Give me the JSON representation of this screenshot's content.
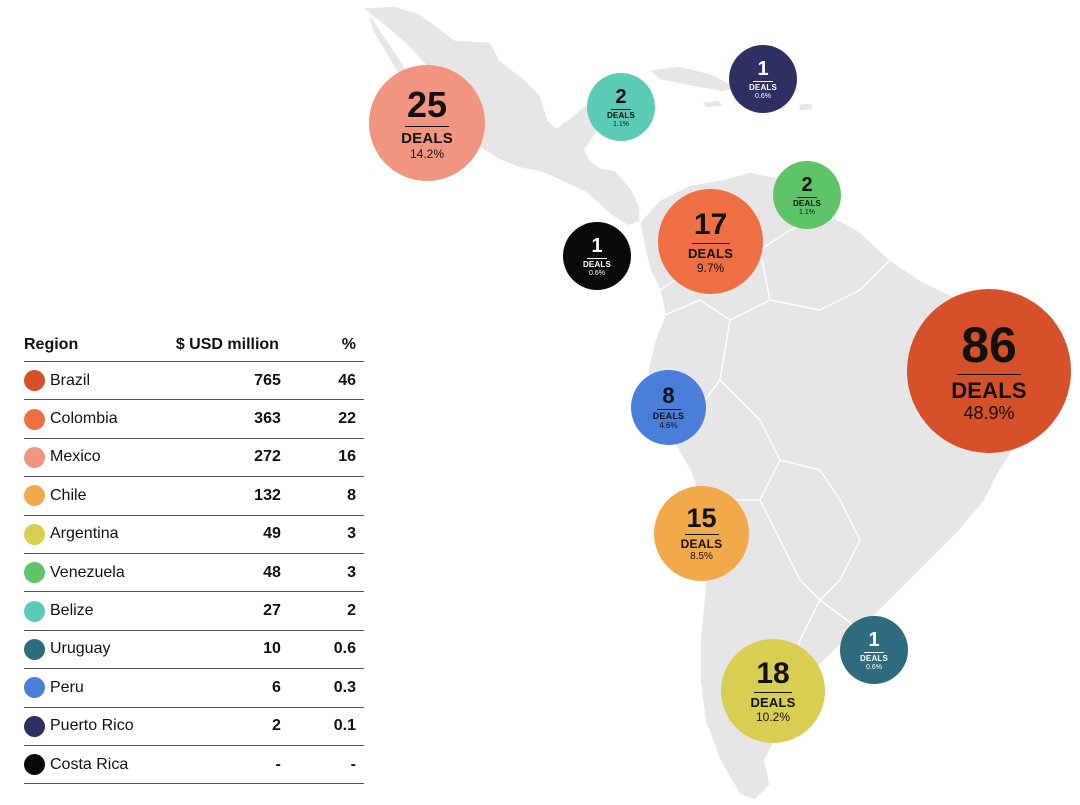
{
  "colors": {
    "map_land": "#e6e6e6",
    "map_border": "#ffffff"
  },
  "table": {
    "headers": {
      "region": "Region",
      "usd": "$ USD million",
      "pct": "%"
    },
    "rows": [
      {
        "region": "Brazil",
        "usd": "765",
        "pct": "46",
        "color": "#d6502a"
      },
      {
        "region": "Colombia",
        "usd": "363",
        "pct": "22",
        "color": "#ef6f45"
      },
      {
        "region": "Mexico",
        "usd": "272",
        "pct": "16",
        "color": "#f29580"
      },
      {
        "region": "Chile",
        "usd": "132",
        "pct": "8",
        "color": "#f2a94a"
      },
      {
        "region": "Argentina",
        "usd": "49",
        "pct": "3",
        "color": "#d8cf52"
      },
      {
        "region": "Venezuela",
        "usd": "48",
        "pct": "3",
        "color": "#5dc468"
      },
      {
        "region": "Belize",
        "usd": "27",
        "pct": "2",
        "color": "#5ccbb5"
      },
      {
        "region": "Uruguay",
        "usd": "10",
        "pct": "0.6",
        "color": "#2d6c7f"
      },
      {
        "region": "Peru",
        "usd": "6",
        "pct": "0.3",
        "color": "#4a7fd9"
      },
      {
        "region": "Puerto Rico",
        "usd": "2",
        "pct": "0.1",
        "color": "#2e2f63"
      },
      {
        "region": "Costa Rica",
        "usd": "-",
        "pct": "-",
        "color": "#0a0a0a"
      }
    ]
  },
  "bubbles": {
    "mexico": {
      "count": "25",
      "label": "DEALS",
      "pct": "14.2%",
      "color": "#f29580"
    },
    "belize": {
      "count": "2",
      "label": "DEALS",
      "pct": "1.1%",
      "color": "#5ccbb5"
    },
    "puerto_rico": {
      "count": "1",
      "label": "DEALS",
      "pct": "0.6%",
      "color": "#2e2f63"
    },
    "venezuela": {
      "count": "2",
      "label": "DEALS",
      "pct": "1.1%",
      "color": "#5dc468"
    },
    "colombia": {
      "count": "17",
      "label": "DEALS",
      "pct": "9.7%",
      "color": "#ef6f45"
    },
    "costa_rica": {
      "count": "1",
      "label": "DEALS",
      "pct": "0.6%",
      "color": "#0a0a0a"
    },
    "brazil": {
      "count": "86",
      "label": "DEALS",
      "pct": "48.9%",
      "color": "#d6502a"
    },
    "peru": {
      "count": "8",
      "label": "DEALS",
      "pct": "4.6%",
      "color": "#4a7fd9"
    },
    "chile": {
      "count": "15",
      "label": "DEALS",
      "pct": "8.5%",
      "color": "#f2a94a"
    },
    "uruguay": {
      "count": "1",
      "label": "DEALS",
      "pct": "0.6%",
      "color": "#2d6c7f"
    },
    "argentina": {
      "count": "18",
      "label": "DEALS",
      "pct": "10.2%",
      "color": "#d8cf52"
    }
  }
}
